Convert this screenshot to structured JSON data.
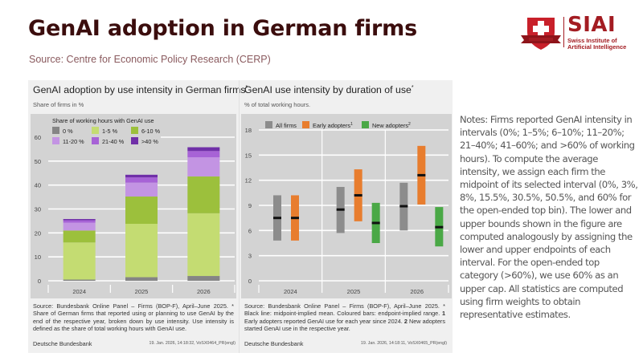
{
  "page": {
    "title": "GenAI adoption in German firms",
    "source": "Source: Centre for Economic Policy Research (CERP)"
  },
  "logo": {
    "name": "SIAI",
    "subtitle_line1": "Swiss Institute of",
    "subtitle_line2": "Artificial Intelligence",
    "colors": {
      "brand": "#a31c22"
    }
  },
  "notes": "Notes: Firms reported GenAI intensity in intervals (0%; 1–5%; 6–10%; 11–20%; 21–40%; 41–60%; and >60% of working hours). To compute the average intensity, we assign each firm the midpoint of its selected interval (0%, 3%, 8%, 15.5%, 30.5%, 50.5%, and 60% for the open-ended top bin). The lower and upper bounds shown in the figure are computed analogously by assigning the lower and upper endpoints of each interval. For the open-ended top category (>60%), we use 60% as an upper cap. All statistics are computed using firm weights to obtain representative estimates.",
  "panels": {
    "left": {
      "title": "GenAI adoption by use intensity in German firms",
      "title_marker": "*",
      "subtitle": "Share of firms in %",
      "legend_title": "Share of working hours with GenAI use",
      "note": "Source: Bundesbank Online Panel – Firms (BOP-F), April–June 2025. * Share of German firms that reported using or planning to use GenAI by the end of the respective year, broken down by use intensity. Use intensity is defined as the share of total working hours with GenAI use.",
      "footer": "Deutsche Bundesbank",
      "stamp": "19. Jan. 2026, 14:18:32, VoSX0464_PR(engl)"
    },
    "right": {
      "title": "GenAI use intensity by duration of use",
      "title_marker": "*",
      "subtitle": "% of total working hours.",
      "note_a": "Source: Bundesbank Online Panel – Firms (BOP-F), April–June 2025. * Black line: midpoint-implied mean. Coloured bars: endpoint-implied range. ",
      "note_b1": "1",
      "note_b": " Early adopters reported GenAI use for each year since 2024. ",
      "note_c1": "2",
      "note_c": " New adopters started GenAI use in the respective year.",
      "footer": "Deutsche Bundesbank",
      "stamp": "19. Jan. 2026, 14:18:11, VoSX0465_PR(engl)"
    }
  },
  "chart_data": [
    {
      "type": "bar",
      "stacked": true,
      "title": "GenAI adoption by use intensity in German firms*",
      "subtitle": "Share of firms in %",
      "xlabel": "",
      "ylabel": "Share of firms in %",
      "ylim": [
        0,
        60
      ],
      "yticks": [
        0,
        10,
        20,
        30,
        40,
        50,
        60
      ],
      "grid": true,
      "legend_title": "Share of working hours with GenAI use",
      "legend_position": "top-left",
      "categories": [
        "2024",
        "2025",
        "2026"
      ],
      "series": [
        {
          "name": "0 %",
          "color": "#858585",
          "values": [
            0.5,
            1.5,
            2.0
          ]
        },
        {
          "name": "1-5 %",
          "color": "#c4dc72",
          "values": [
            15.5,
            22.3,
            26.2
          ]
        },
        {
          "name": "6-10 %",
          "color": "#9cc03c",
          "values": [
            5.0,
            11.4,
            15.4
          ]
        },
        {
          "name": "11-20 %",
          "color": "#c394e3",
          "values": [
            3.3,
            5.8,
            8.0
          ]
        },
        {
          "name": "21-40 %",
          "color": "#a763d6",
          "values": [
            1.0,
            2.2,
            2.6
          ]
        },
        {
          "name": ">40 %",
          "color": "#7030a8",
          "values": [
            0.5,
            1.1,
            1.6
          ]
        }
      ]
    },
    {
      "type": "range-bar",
      "title": "GenAI use intensity by duration of use*",
      "subtitle": "% of total working hours.",
      "xlabel": "",
      "ylabel": "% of total working hours",
      "ylim": [
        0,
        18
      ],
      "yticks": [
        0,
        3,
        6,
        9,
        12,
        15,
        18
      ],
      "grid": true,
      "legend_position": "top",
      "categories": [
        "2024",
        "2025",
        "2026"
      ],
      "series": [
        {
          "name": "All firms",
          "name_sup": "",
          "color": "#8c8c8c",
          "low": [
            4.8,
            5.7,
            6.0
          ],
          "high": [
            10.2,
            11.2,
            11.7
          ],
          "mean": [
            7.5,
            8.5,
            8.9
          ]
        },
        {
          "name": "Early adopters",
          "name_sup": "1",
          "color": "#e87d2e",
          "low": [
            4.8,
            7.1,
            9.1
          ],
          "high": [
            10.2,
            13.3,
            16.1
          ],
          "mean": [
            7.5,
            10.2,
            12.6
          ]
        },
        {
          "name": "New adopters",
          "name_sup": "2",
          "color": "#4aa846",
          "low": [
            null,
            4.5,
            4.1
          ],
          "high": [
            null,
            9.3,
            8.8
          ],
          "mean": [
            null,
            6.9,
            6.4
          ]
        }
      ]
    }
  ]
}
